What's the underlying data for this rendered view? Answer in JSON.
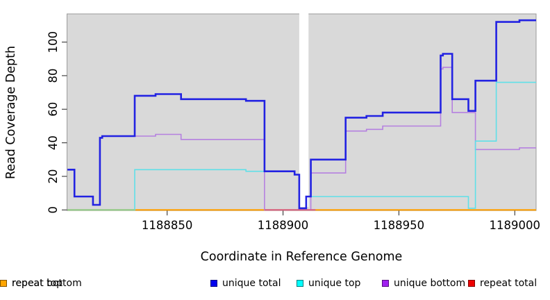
{
  "figure": {
    "x_axis_label": "Coordinate in Reference Genome",
    "y_axis_label": "Read Coverage Depth"
  },
  "legend": [
    {
      "label": "unique total",
      "swatch": "#0000ee",
      "border": "#000080"
    },
    {
      "label": "unique top",
      "swatch": "#00ffff",
      "border": "#007d7d"
    },
    {
      "label": "unique bottom",
      "swatch": "#a020f0",
      "border": "#550a80"
    },
    {
      "label": "repeat total",
      "swatch": "#ee0000",
      "border": "#800000"
    },
    {
      "label": "repeat top",
      "swatch": "#ffff00",
      "border": "#808000"
    },
    {
      "label": "repeat bottom",
      "swatch": "#ffa500",
      "border": "#805300"
    }
  ],
  "chart_data": {
    "type": "line",
    "title": "",
    "xlabel": "Coordinate in Reference Genome",
    "ylabel": "Read Coverage Depth",
    "xlim": [
      1188806.8,
      1189009.2
    ],
    "ylim": [
      0,
      116.8
    ],
    "x_ticks": [
      1188850,
      1188900,
      1188950,
      1189000
    ],
    "y_ticks": [
      0,
      20,
      40,
      60,
      80,
      100
    ],
    "background": "#d9d9d9",
    "grid": false,
    "legend_position": "bottom",
    "masked_region": {
      "from": 1188907,
      "to": 1188911,
      "color": "#ffffff"
    },
    "series": [
      {
        "name": "unique total",
        "color": "#2222e2",
        "width": 2.6,
        "steps": [
          [
            1188807,
            24
          ],
          [
            1188810,
            8
          ],
          [
            1188818,
            3
          ],
          [
            1188821,
            43
          ],
          [
            1188822,
            44
          ],
          [
            1188836,
            68
          ],
          [
            1188845,
            69
          ],
          [
            1188856,
            66
          ],
          [
            1188884,
            65
          ],
          [
            1188892,
            23
          ],
          [
            1188905,
            21
          ],
          [
            1188907,
            1
          ],
          [
            1188910,
            8
          ],
          [
            1188912,
            30
          ],
          [
            1188927,
            55
          ],
          [
            1188936,
            56
          ],
          [
            1188943,
            58
          ],
          [
            1188968,
            92
          ],
          [
            1188969,
            93
          ],
          [
            1188973,
            66
          ],
          [
            1188980,
            59
          ],
          [
            1188983,
            77
          ],
          [
            1188992,
            112
          ],
          [
            1189002,
            113
          ]
        ]
      },
      {
        "name": "unique top",
        "color": "#5fe0e8",
        "width": 1.6,
        "steps": [
          [
            1188807,
            0
          ],
          [
            1188836,
            24
          ],
          [
            1188884,
            23
          ],
          [
            1188905,
            21
          ],
          [
            1188907,
            1
          ],
          [
            1188910,
            8
          ],
          [
            1188980,
            1
          ],
          [
            1188983,
            41
          ],
          [
            1188992,
            76
          ]
        ]
      },
      {
        "name": "unique bottom",
        "color": "#b580e0",
        "width": 1.6,
        "steps": [
          [
            1188807,
            24
          ],
          [
            1188810,
            8
          ],
          [
            1188818,
            3
          ],
          [
            1188821,
            43
          ],
          [
            1188822,
            44
          ],
          [
            1188845,
            45
          ],
          [
            1188856,
            42
          ],
          [
            1188892,
            0
          ],
          [
            1188912,
            22
          ],
          [
            1188927,
            47
          ],
          [
            1188936,
            48
          ],
          [
            1188943,
            50
          ],
          [
            1188968,
            84
          ],
          [
            1188969,
            85
          ],
          [
            1188973,
            58
          ],
          [
            1188983,
            36
          ],
          [
            1189002,
            37
          ]
        ]
      },
      {
        "name": "repeat total",
        "color": "#ee0000",
        "width": 1.6,
        "steps": [
          [
            1188807,
            0
          ]
        ]
      },
      {
        "name": "repeat top",
        "color": "#ffff00",
        "width": 1.6,
        "steps": [
          [
            1188807,
            0
          ]
        ]
      },
      {
        "name": "repeat bottom",
        "color": "#ffa000",
        "width": 2.0,
        "steps": [
          [
            1188807,
            0
          ]
        ]
      }
    ],
    "overlap_blends": [
      {
        "from": 1188807,
        "to": 1188836,
        "value": 0,
        "color": "#8ccf96"
      },
      {
        "from": 1188892,
        "to": 1188914,
        "value": 0,
        "color": "#d4608c"
      }
    ]
  }
}
